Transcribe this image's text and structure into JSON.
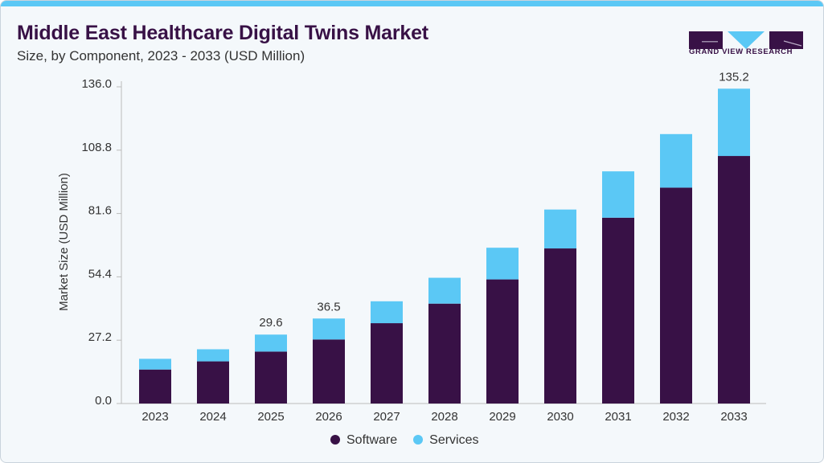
{
  "header": {
    "title": "Middle East Healthcare Digital Twins Market",
    "subtitle": "Size, by Component, 2023 - 2033 (USD Million)"
  },
  "logo": {
    "text": "GRAND VIEW RESEARCH"
  },
  "chart_data": {
    "type": "bar",
    "stacked": true,
    "title": "Middle East Healthcare Digital Twins Market",
    "subtitle": "Size, by Component, 2023 - 2033 (USD Million)",
    "xlabel": "",
    "ylabel": "Market Size (USD Million)",
    "ylim": [
      0,
      136
    ],
    "yticks": [
      "0.0",
      "27.2",
      "54.4",
      "81.6",
      "108.8",
      "136.0"
    ],
    "grid": false,
    "legend": "bottom",
    "categories": [
      "2023",
      "2024",
      "2025",
      "2026",
      "2027",
      "2028",
      "2029",
      "2030",
      "2031",
      "2032",
      "2033"
    ],
    "series": [
      {
        "name": "Software",
        "color": "#381146",
        "values": [
          14.6,
          18.1,
          22.3,
          27.5,
          34.5,
          42.9,
          53.3,
          66.6,
          79.8,
          92.7,
          106.3
        ]
      },
      {
        "name": "Services",
        "color": "#5bc8f5",
        "values": [
          4.6,
          5.2,
          7.3,
          9.0,
          9.4,
          11.1,
          13.6,
          16.7,
          19.9,
          23.0,
          28.9
        ]
      }
    ],
    "data_labels": [
      {
        "category": "2025",
        "text": "29.6"
      },
      {
        "category": "2026",
        "text": "36.5"
      },
      {
        "category": "2033",
        "text": "135.2"
      }
    ]
  }
}
